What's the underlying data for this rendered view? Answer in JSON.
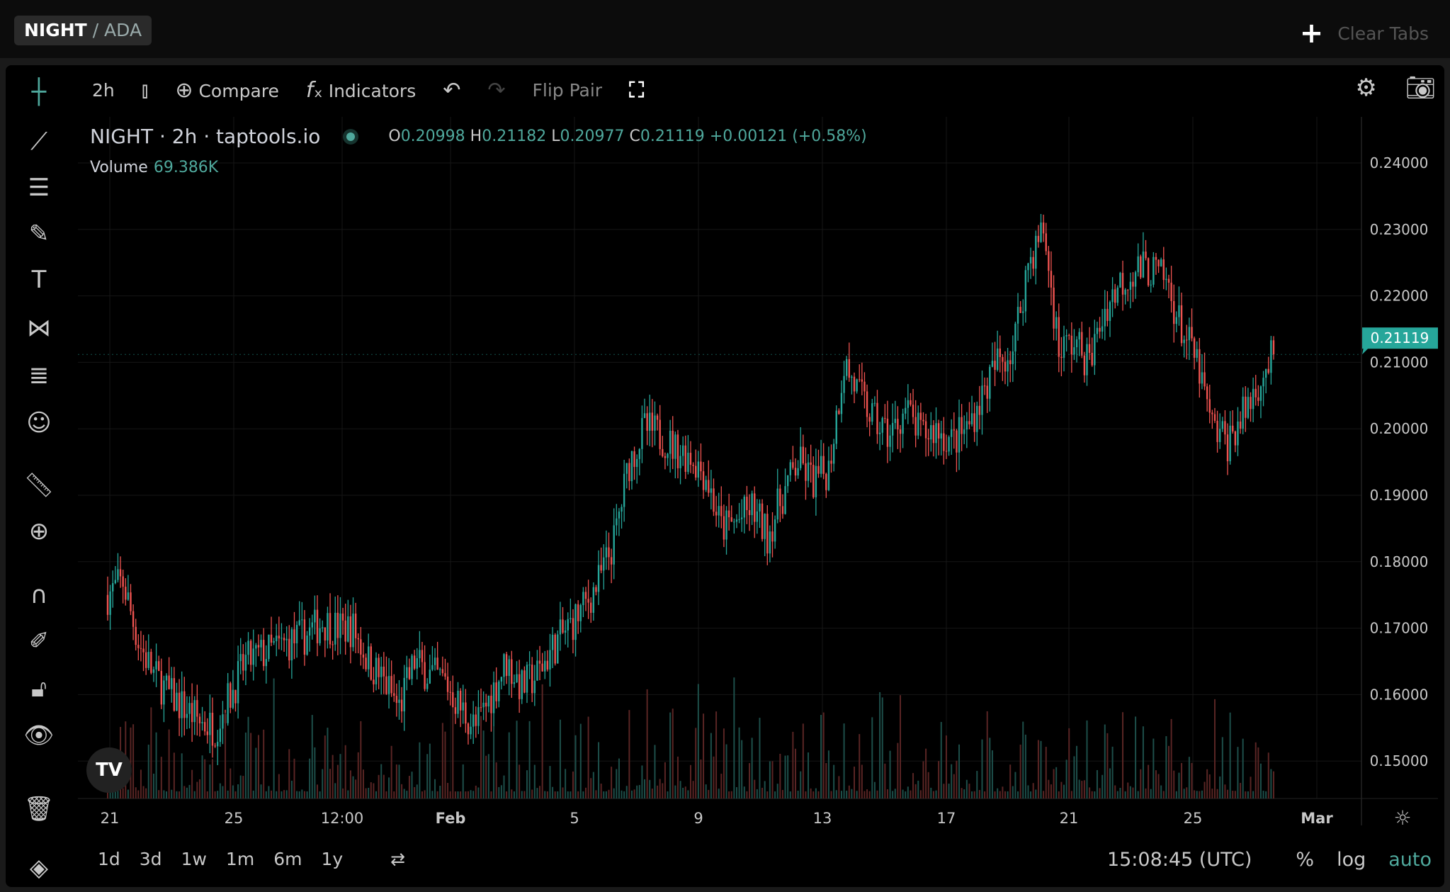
{
  "tab": {
    "base": "NIGHT",
    "quote": "/ ADA"
  },
  "clear_tabs": "Clear Tabs",
  "toolbar": {
    "interval": "2h",
    "compare": "Compare",
    "indicators": "Indicators",
    "flip_pair": "Flip Pair"
  },
  "legend": {
    "title": "NIGHT · 2h · taptools.io",
    "o_label": "O",
    "o": "0.20998",
    "h_label": "H",
    "h": "0.21182",
    "l_label": "L",
    "l": "0.20977",
    "c_label": "C",
    "c": "0.21119",
    "change": "+0.00121 (+0.58%)",
    "volume_label": "Volume",
    "volume": "69.386K"
  },
  "sidebar_icons": [
    "crosshair-icon",
    "trend-line-icon",
    "horizontal-lines-icon",
    "brush-icon",
    "text-icon",
    "pattern-icon",
    "fib-icon",
    "emoji-icon",
    "ruler-icon",
    "zoom-in-icon",
    "magnet-icon",
    "lock-draw-icon",
    "unlock-icon",
    "eye-icon",
    "trash-icon",
    "layers-icon"
  ],
  "bottom": {
    "ranges": [
      "1d",
      "3d",
      "1w",
      "1m",
      "6m",
      "1y"
    ],
    "clock": "15:08:45 (UTC)",
    "percent": "%",
    "log": "log",
    "auto": "auto"
  },
  "colors": {
    "up": "#26a69a",
    "down": "#ef5350",
    "accent": "#4fa89c"
  },
  "chart_data": {
    "type": "candlestick",
    "last_price_label": "0.21119",
    "y_ticks": [
      "0.24000",
      "0.23000",
      "0.22000",
      "0.21000",
      "0.20000",
      "0.19000",
      "0.18000",
      "0.17000",
      "0.16000",
      "0.15000"
    ],
    "ylim": [
      0.1435,
      0.2505
    ],
    "x_ticks": [
      "21",
      "25",
      "12:00",
      "Feb",
      "5",
      "9",
      "13",
      "17",
      "21",
      "25",
      "Mar"
    ],
    "grid": true,
    "approx_close_every_12h": [
      0.175,
      0.177,
      0.168,
      0.163,
      0.16,
      0.158,
      0.156,
      0.155,
      0.16,
      0.165,
      0.166,
      0.167,
      0.168,
      0.169,
      0.171,
      0.17,
      0.17,
      0.165,
      0.162,
      0.158,
      0.165,
      0.163,
      0.162,
      0.158,
      0.155,
      0.16,
      0.165,
      0.161,
      0.163,
      0.167,
      0.17,
      0.173,
      0.177,
      0.183,
      0.195,
      0.2,
      0.199,
      0.197,
      0.196,
      0.193,
      0.185,
      0.186,
      0.188,
      0.184,
      0.19,
      0.195,
      0.192,
      0.194,
      0.21,
      0.205,
      0.201,
      0.199,
      0.203,
      0.199,
      0.2,
      0.198,
      0.2,
      0.205,
      0.21,
      0.212,
      0.225,
      0.23,
      0.212,
      0.213,
      0.21,
      0.218,
      0.222,
      0.224,
      0.224,
      0.222,
      0.215,
      0.21,
      0.2,
      0.198,
      0.202,
      0.207,
      0.211
    ]
  }
}
